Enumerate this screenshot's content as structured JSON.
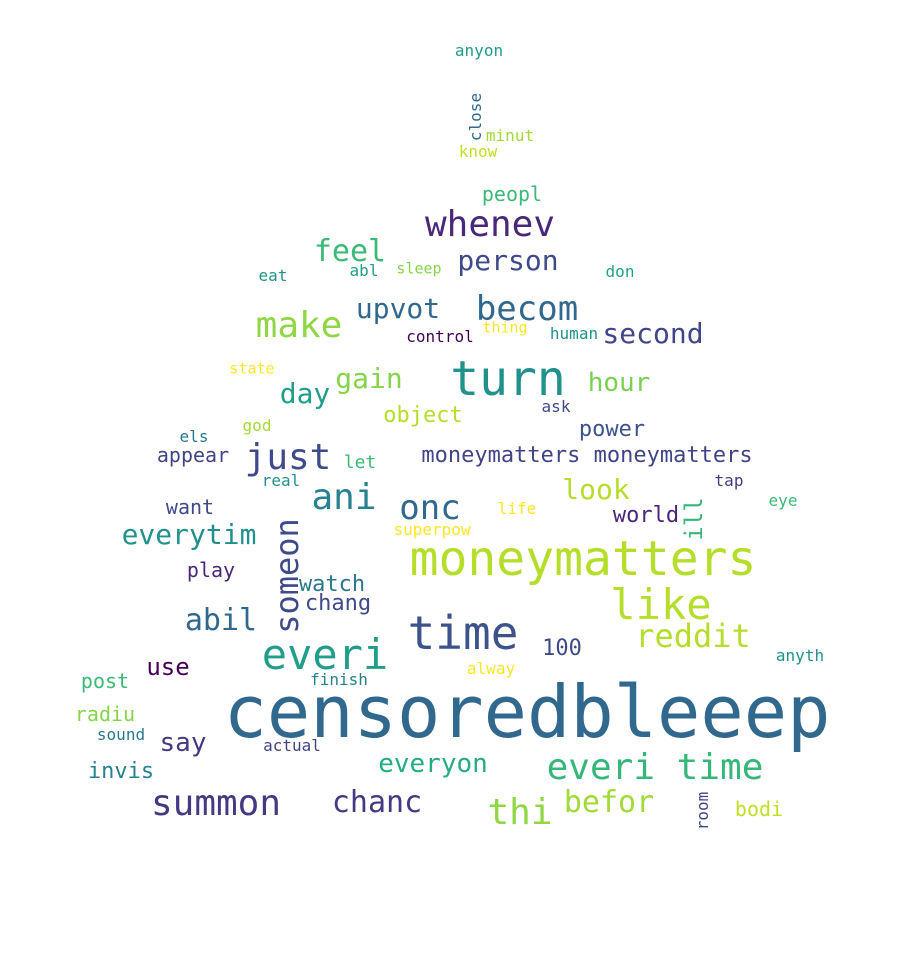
{
  "words": [
    {
      "text": "censoredbleeep",
      "color": "#31688e"
    },
    {
      "text": "moneymatters",
      "color": "#b5de2b"
    },
    {
      "text": "turn",
      "color": "#21918c"
    },
    {
      "text": "time",
      "color": "#3b528b"
    },
    {
      "text": "everi",
      "color": "#1f9e89"
    },
    {
      "text": "like",
      "color": "#b5de2b"
    },
    {
      "text": "everi time",
      "color": "#35b779"
    },
    {
      "text": "whenev",
      "color": "#482878"
    },
    {
      "text": "summon",
      "color": "#443983"
    },
    {
      "text": "becom",
      "color": "#31688e"
    },
    {
      "text": "onc",
      "color": "#31688e"
    },
    {
      "text": "make",
      "color": "#90d743"
    },
    {
      "text": "just",
      "color": "#3e4a89"
    },
    {
      "text": "ani",
      "color": "#26828e"
    },
    {
      "text": "thi",
      "color": "#90d743"
    },
    {
      "text": "someon",
      "color": "#3e4a89"
    },
    {
      "text": "reddit",
      "color": "#b5de2b"
    },
    {
      "text": "chanc",
      "color": "#443983"
    },
    {
      "text": "everytim",
      "color": "#21918c"
    },
    {
      "text": "befor",
      "color": "#a2da37"
    },
    {
      "text": "abil",
      "color": "#31688e"
    },
    {
      "text": "feel",
      "color": "#3aba76"
    },
    {
      "text": "person",
      "color": "#3e4a89"
    },
    {
      "text": "second",
      "color": "#404688"
    },
    {
      "text": "upvot",
      "color": "#31688e"
    },
    {
      "text": "look",
      "color": "#b5de2b"
    },
    {
      "text": "gain",
      "color": "#86d549"
    },
    {
      "text": "hour",
      "color": "#7ad151"
    },
    {
      "text": "day",
      "color": "#1f9e89"
    },
    {
      "text": "everyon",
      "color": "#25ac82"
    },
    {
      "text": "say",
      "color": "#443983"
    },
    {
      "text": "moneymatters moneymatters",
      "color": "#414487"
    },
    {
      "text": "power",
      "color": "#3b528b"
    },
    {
      "text": "object",
      "color": "#b5de2b"
    },
    {
      "text": "use",
      "color": "#440154"
    },
    {
      "text": "ill",
      "color": "#35b779"
    },
    {
      "text": "world",
      "color": "#482878"
    },
    {
      "text": "watch",
      "color": "#2a788e"
    },
    {
      "text": "chang",
      "color": "#3e4a89"
    },
    {
      "text": "100",
      "color": "#3e4a89"
    },
    {
      "text": "peopl",
      "color": "#3aba76"
    },
    {
      "text": "appear",
      "color": "#414487"
    },
    {
      "text": "want",
      "color": "#3e4a89"
    },
    {
      "text": "play",
      "color": "#482878"
    },
    {
      "text": "invis",
      "color": "#26828e"
    },
    {
      "text": "radiu",
      "color": "#86d549"
    },
    {
      "text": "post",
      "color": "#3aba76"
    },
    {
      "text": "let",
      "color": "#3aba76"
    },
    {
      "text": "control",
      "color": "#440154"
    },
    {
      "text": "anyon",
      "color": "#1f9e89"
    },
    {
      "text": "minut",
      "color": "#a2da37"
    },
    {
      "text": "know",
      "color": "#c2df23"
    },
    {
      "text": "close",
      "color": "#31688e"
    },
    {
      "text": "eat",
      "color": "#21918c"
    },
    {
      "text": "abl",
      "color": "#1f9e89"
    },
    {
      "text": "sleep",
      "color": "#86d549"
    },
    {
      "text": "don",
      "color": "#20a486"
    },
    {
      "text": "thing",
      "color": "#fde725"
    },
    {
      "text": "human",
      "color": "#21918c"
    },
    {
      "text": "state",
      "color": "#fde725"
    },
    {
      "text": "ask",
      "color": "#3e4a89"
    },
    {
      "text": "god",
      "color": "#a2da37"
    },
    {
      "text": "els",
      "color": "#2a788e"
    },
    {
      "text": "real",
      "color": "#21918c"
    },
    {
      "text": "tap",
      "color": "#443983"
    },
    {
      "text": "eye",
      "color": "#3aba76"
    },
    {
      "text": "life",
      "color": "#fde725"
    },
    {
      "text": "superpow",
      "color": "#fde725"
    },
    {
      "text": "alway",
      "color": "#fde725"
    },
    {
      "text": "anyth",
      "color": "#21918c"
    },
    {
      "text": "finish",
      "color": "#26828e"
    },
    {
      "text": "sound",
      "color": "#2a788e"
    },
    {
      "text": "actual",
      "color": "#414487"
    },
    {
      "text": "room",
      "color": "#414487"
    },
    {
      "text": "bodi",
      "color": "#c2df23"
    }
  ]
}
